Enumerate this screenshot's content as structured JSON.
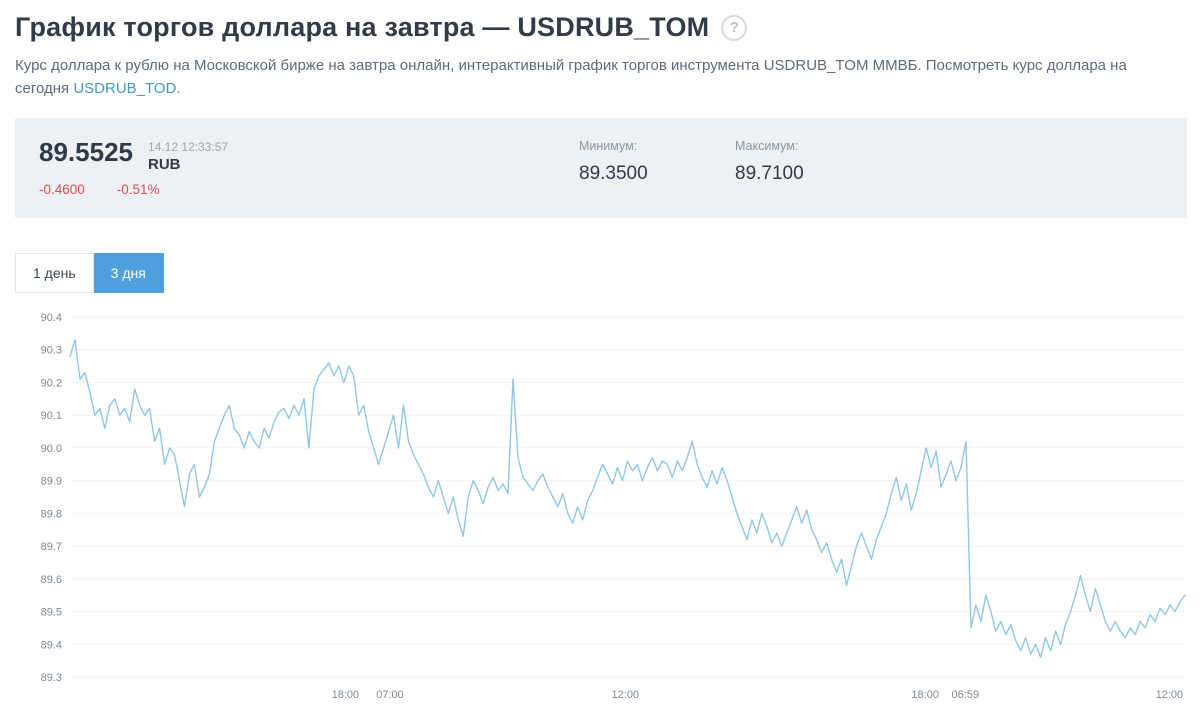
{
  "header": {
    "title": "График торгов доллара на завтра — USDRUB_TOM",
    "help_icon": "?",
    "subtitle_part1": "Курс доллара к рублю на Московской бирже на завтра онлайн, интерактивный график торгов инструмента USDRUB_TOM ММВБ. Посмотреть курс доллара на сегодня ",
    "subtitle_link": "USDRUB_TOD",
    "subtitle_part2": "."
  },
  "quote": {
    "price": "89.5525",
    "currency": "RUB",
    "timestamp": "14.12 12:33:57",
    "change_abs": "-0.4600",
    "change_pct": "-0.51%",
    "min_label": "Минимум:",
    "min_value": "89.3500",
    "max_label": "Максимум:",
    "max_value": "89.7100"
  },
  "tabs": [
    {
      "label": "1 день",
      "active": false
    },
    {
      "label": "3 дня",
      "active": true
    }
  ],
  "colors": {
    "accent_blue": "#4da0dd",
    "link_blue": "#4296ce",
    "negative_red": "#d94f4f",
    "panel_bg": "#eef1f3",
    "line_blue": "#8fc7e8",
    "axis_text": "#7c8893"
  },
  "chart_data": {
    "type": "line",
    "title": "",
    "xlabel": "",
    "ylabel": "",
    "legend": false,
    "grid": true,
    "ylim": [
      89.3,
      90.4
    ],
    "yticks": [
      "90.4",
      "90.3",
      "90.2",
      "90.1",
      "90.0",
      "89.9",
      "89.8",
      "89.7",
      "89.6",
      "89.5",
      "89.4",
      "89.3"
    ],
    "xticks": [
      {
        "label": "18:00",
        "pos": 0.247
      },
      {
        "label": "07:00",
        "pos": 0.287
      },
      {
        "label": "12:00",
        "pos": 0.498
      },
      {
        "label": "18:00",
        "pos": 0.767
      },
      {
        "label": "06:59",
        "pos": 0.803
      },
      {
        "label": "12:00",
        "pos": 0.986
      }
    ],
    "line_color": "#8fc7e8",
    "series_name": "USDRUB_TOM",
    "values": [
      90.28,
      90.33,
      90.21,
      90.23,
      90.17,
      90.1,
      90.12,
      90.06,
      90.13,
      90.15,
      90.1,
      90.12,
      90.08,
      90.18,
      90.13,
      90.1,
      90.12,
      90.02,
      90.06,
      89.95,
      90.0,
      89.98,
      89.9,
      89.82,
      89.92,
      89.95,
      89.85,
      89.88,
      89.92,
      90.02,
      90.06,
      90.1,
      90.13,
      90.06,
      90.04,
      90.0,
      90.05,
      90.02,
      90.0,
      90.06,
      90.03,
      90.08,
      90.11,
      90.12,
      90.09,
      90.13,
      90.1,
      90.15,
      90.0,
      90.18,
      90.22,
      90.24,
      90.26,
      90.22,
      90.25,
      90.2,
      90.25,
      90.22,
      90.1,
      90.13,
      90.05,
      90.0,
      89.95,
      90.0,
      90.05,
      90.1,
      90.0,
      90.13,
      90.02,
      89.98,
      89.95,
      89.92,
      89.88,
      89.85,
      89.9,
      89.85,
      89.8,
      89.85,
      89.78,
      89.73,
      89.85,
      89.9,
      89.87,
      89.83,
      89.88,
      89.91,
      89.87,
      89.89,
      89.86,
      90.21,
      89.97,
      89.91,
      89.89,
      89.87,
      89.9,
      89.92,
      89.88,
      89.85,
      89.82,
      89.86,
      89.8,
      89.77,
      89.82,
      89.78,
      89.84,
      89.87,
      89.91,
      89.95,
      89.92,
      89.89,
      89.94,
      89.9,
      89.96,
      89.93,
      89.95,
      89.9,
      89.94,
      89.97,
      89.93,
      89.96,
      89.95,
      89.91,
      89.96,
      89.93,
      89.97,
      90.02,
      89.95,
      89.91,
      89.88,
      89.93,
      89.89,
      89.94,
      89.9,
      89.85,
      89.8,
      89.76,
      89.72,
      89.78,
      89.74,
      89.8,
      89.76,
      89.71,
      89.74,
      89.7,
      89.74,
      89.78,
      89.82,
      89.77,
      89.81,
      89.75,
      89.72,
      89.68,
      89.71,
      89.66,
      89.62,
      89.66,
      89.58,
      89.64,
      89.7,
      89.74,
      89.7,
      89.66,
      89.72,
      89.76,
      89.8,
      89.86,
      89.91,
      89.84,
      89.89,
      89.81,
      89.86,
      89.93,
      90.0,
      89.94,
      89.99,
      89.88,
      89.92,
      89.96,
      89.9,
      89.94,
      90.02,
      89.45,
      89.52,
      89.47,
      89.55,
      89.5,
      89.44,
      89.47,
      89.43,
      89.46,
      89.41,
      89.38,
      89.42,
      89.37,
      89.4,
      89.36,
      89.42,
      89.38,
      89.44,
      89.4,
      89.46,
      89.5,
      89.55,
      89.61,
      89.55,
      89.5,
      89.57,
      89.52,
      89.47,
      89.44,
      89.47,
      89.44,
      89.42,
      89.45,
      89.43,
      89.47,
      89.45,
      89.49,
      89.47,
      89.51,
      89.49,
      89.52,
      89.5,
      89.53,
      89.55
    ]
  }
}
